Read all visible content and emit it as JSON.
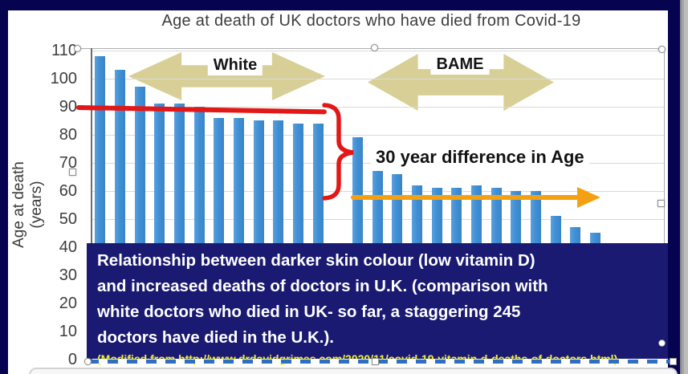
{
  "window": {
    "frame_color": "#060450",
    "scroll_strip": "right-edge"
  },
  "chart": {
    "title": "Age at death of UK doctors who have died from Covid-19",
    "y_axis_title": "Age at death (years)",
    "selected": true
  },
  "chart_data": {
    "type": "bar",
    "title": "Age at death of UK doctors who have died from Covid-19",
    "xlabel": "",
    "ylabel": "Age at death (years)",
    "ylim": [
      0,
      110
    ],
    "y_ticks": [
      0,
      10,
      20,
      30,
      40,
      50,
      60,
      70,
      80,
      90,
      100,
      110
    ],
    "grid": true,
    "legend_position": "none",
    "bar_color": "#4090d5",
    "groups": [
      {
        "name": "White",
        "values": [
          108,
          103,
          97,
          91,
          91,
          90,
          86,
          86,
          85,
          85,
          84,
          84
        ]
      },
      {
        "name": "BAME",
        "values": [
          79,
          67,
          66,
          62,
          61,
          61,
          62,
          61,
          60,
          60,
          51,
          47,
          45
        ]
      }
    ]
  },
  "annotations": {
    "white_arrow_label": "White",
    "bame_arrow_label": "BAME",
    "difference_text": "30 year difference in Age",
    "block_arrow_color": "#d8cf97",
    "red_color": "#e21717",
    "orange_color": "#f4a013"
  },
  "caption_box": {
    "bg_color": "#1a1a73",
    "text_color": "#ffffff",
    "source_color": "#eeee3c",
    "lines": [
      "Relationship between darker skin colour (low vitamin D)",
      "and increased deaths of doctors in U.K. (comparison with",
      "white doctors who died in UK- so far, a staggering 245",
      "doctors have died in the U.K.)."
    ],
    "source": "(Modified from http://www.drdavidgrimes.com/2020/11/covid-19-vitamin-d-deaths-of-doctors.html)"
  }
}
